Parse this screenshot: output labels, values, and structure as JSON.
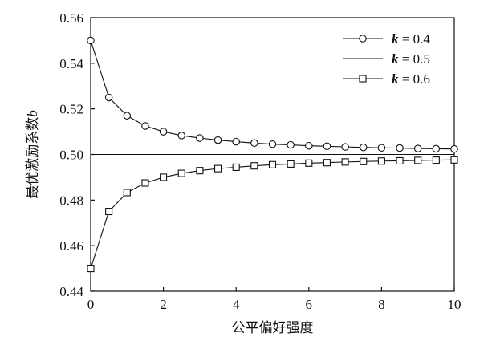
{
  "chart_data": {
    "type": "line",
    "xlabel": "公平偏好强度",
    "ylabel_main": "最优激励系数",
    "ylabel_var": "b",
    "xlim": [
      0,
      10
    ],
    "ylim": [
      0.44,
      0.56
    ],
    "xticks": [
      0,
      2,
      4,
      6,
      8,
      10
    ],
    "yticks": [
      0.44,
      0.46,
      0.48,
      0.5,
      0.52,
      0.54,
      0.56
    ],
    "ytick_labels": [
      "0.44",
      "0.46",
      "0.48",
      "0.50",
      "0.52",
      "0.54",
      "0.56"
    ],
    "legend_position": "top-right",
    "series": [
      {
        "name_var": "k",
        "name_value": " = 0.4",
        "marker": "circle",
        "x": [
          0,
          0.5,
          1,
          1.5,
          2,
          2.5,
          3,
          3.5,
          4,
          4.5,
          5,
          5.5,
          6,
          6.5,
          7,
          7.5,
          8,
          8.5,
          9,
          9.5,
          10
        ],
        "y": [
          0.55,
          0.525,
          0.517,
          0.5125,
          0.51,
          0.5083,
          0.5072,
          0.5063,
          0.5056,
          0.505,
          0.5045,
          0.5042,
          0.5038,
          0.5036,
          0.5033,
          0.5031,
          0.5029,
          0.5028,
          0.5026,
          0.5025,
          0.5024
        ]
      },
      {
        "name_var": "k",
        "name_value": " = 0.5",
        "marker": "none",
        "x": [
          0,
          10
        ],
        "y": [
          0.5,
          0.5
        ]
      },
      {
        "name_var": "k",
        "name_value": " = 0.6",
        "marker": "square",
        "x": [
          0,
          0.5,
          1,
          1.5,
          2,
          2.5,
          3,
          3.5,
          4,
          4.5,
          5,
          5.5,
          6,
          6.5,
          7,
          7.5,
          8,
          8.5,
          9,
          9.5,
          10
        ],
        "y": [
          0.45,
          0.475,
          0.4833,
          0.4875,
          0.49,
          0.4917,
          0.4929,
          0.4938,
          0.4944,
          0.495,
          0.4955,
          0.4958,
          0.4962,
          0.4964,
          0.4967,
          0.4969,
          0.4971,
          0.4972,
          0.4974,
          0.4975,
          0.4976
        ]
      }
    ]
  }
}
